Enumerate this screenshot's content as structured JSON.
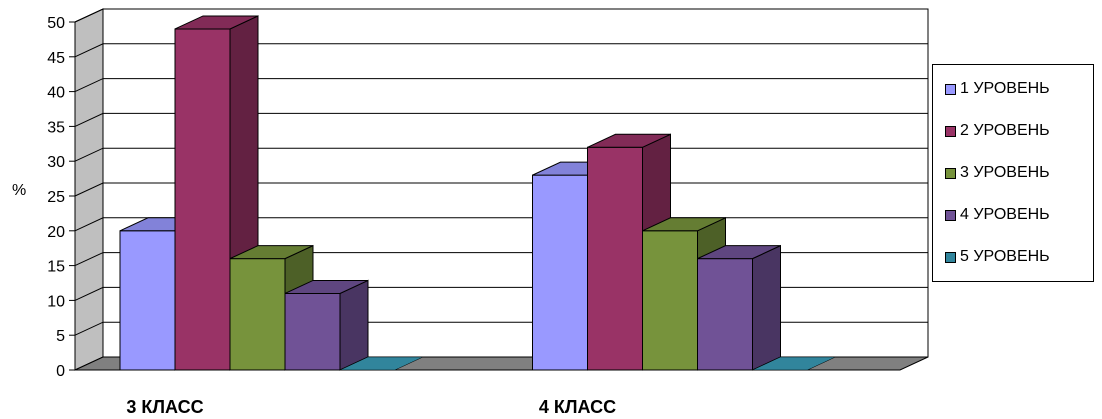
{
  "chart_data": {
    "type": "bar",
    "categories": [
      "3 КЛАСС",
      "4 КЛАСС"
    ],
    "series": [
      {
        "name": "1 УРОВЕНЬ",
        "values": [
          20,
          28
        ]
      },
      {
        "name": "2 УРОВЕНЬ",
        "values": [
          49,
          32
        ]
      },
      {
        "name": "3 УРОВЕНЬ",
        "values": [
          16,
          20
        ]
      },
      {
        "name": "4 УРОВЕНЬ",
        "values": [
          11,
          16
        ]
      },
      {
        "name": "5 УРОВЕНЬ",
        "values": [
          0,
          0
        ]
      }
    ],
    "ylabel": "%",
    "ylim": [
      0,
      50
    ],
    "yticks": [
      "0",
      "5",
      "10",
      "15",
      "20",
      "25",
      "30",
      "35",
      "40",
      "45",
      "50"
    ],
    "grid": true,
    "legend_position": "right",
    "three_d": true
  },
  "colors": {
    "series": [
      "#9999ff",
      "#993366",
      "#77933c",
      "#705296",
      "#31859c"
    ],
    "wall": "#bfbfbf",
    "floor": "#808080"
  }
}
